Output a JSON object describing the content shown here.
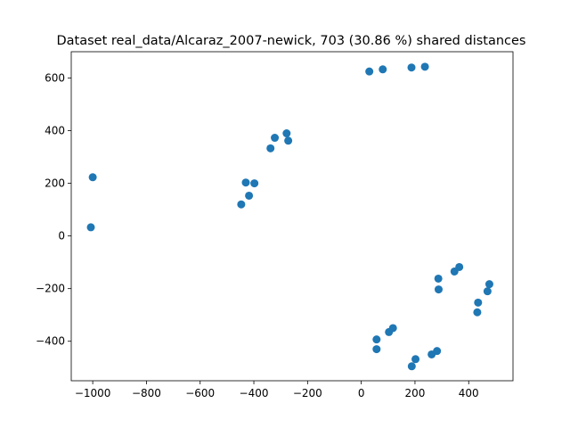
{
  "chart_data": {
    "type": "scatter",
    "title": "Dataset real_data/Alcaraz_2007-newick, 703 (30.86 %) shared distances",
    "xlabel": "",
    "ylabel": "",
    "xlim": [
      -1080,
      565
    ],
    "ylim": [
      -550,
      700
    ],
    "xticks": [
      -1000,
      -800,
      -600,
      -400,
      -200,
      0,
      200,
      400
    ],
    "yticks": [
      -400,
      -200,
      0,
      200,
      400,
      600
    ],
    "xtick_labels": [
      "−1000",
      "−800",
      "−600",
      "−400",
      "−200",
      "0",
      "200",
      "400"
    ],
    "ytick_labels": [
      "−400",
      "−200",
      "0",
      "200",
      "400",
      "600"
    ],
    "grid": false,
    "marker_color": "#1f77b4",
    "points": [
      {
        "x": 30,
        "y": 625
      },
      {
        "x": 80,
        "y": 633
      },
      {
        "x": 187,
        "y": 640
      },
      {
        "x": 237,
        "y": 643
      },
      {
        "x": -1000,
        "y": 223
      },
      {
        "x": -1007,
        "y": 33
      },
      {
        "x": -278,
        "y": 390
      },
      {
        "x": -322,
        "y": 373
      },
      {
        "x": -338,
        "y": 333
      },
      {
        "x": -272,
        "y": 362
      },
      {
        "x": -430,
        "y": 203
      },
      {
        "x": -398,
        "y": 200
      },
      {
        "x": -418,
        "y": 153
      },
      {
        "x": -447,
        "y": 120
      },
      {
        "x": 287,
        "y": -162
      },
      {
        "x": 288,
        "y": -203
      },
      {
        "x": 347,
        "y": -135
      },
      {
        "x": 365,
        "y": -118
      },
      {
        "x": 477,
        "y": -183
      },
      {
        "x": 470,
        "y": -210
      },
      {
        "x": 435,
        "y": -253
      },
      {
        "x": 432,
        "y": -290
      },
      {
        "x": 57,
        "y": -393
      },
      {
        "x": 57,
        "y": -430
      },
      {
        "x": 103,
        "y": -365
      },
      {
        "x": 118,
        "y": -350
      },
      {
        "x": 202,
        "y": -468
      },
      {
        "x": 188,
        "y": -495
      },
      {
        "x": 262,
        "y": -450
      },
      {
        "x": 282,
        "y": -437
      }
    ]
  }
}
